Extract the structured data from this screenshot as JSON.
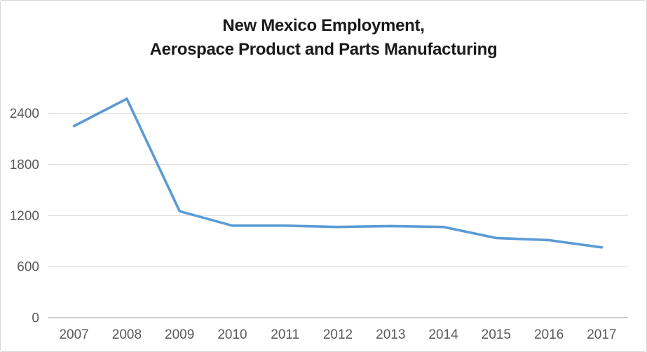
{
  "chart_data": {
    "type": "line",
    "title": "New Mexico Employment, Aerospace Product and Parts Manufacturing",
    "title_line1": "New Mexico Employment,",
    "title_line2": "Aerospace Product and Parts Manufacturing",
    "categories": [
      "2007",
      "2008",
      "2009",
      "2010",
      "2011",
      "2012",
      "2013",
      "2014",
      "2015",
      "2016",
      "2017"
    ],
    "values": [
      2250,
      2570,
      1250,
      1080,
      1080,
      1065,
      1075,
      1065,
      935,
      910,
      825
    ],
    "xlabel": "",
    "ylabel": "",
    "yticks": [
      0,
      600,
      1200,
      1800,
      2400
    ],
    "ylim": [
      0,
      2700
    ],
    "grid": true,
    "legend": "none",
    "colors": {
      "series_line": "#5b9bd5",
      "gridline": "#d9d9d9",
      "axis_line": "#bfbfbf",
      "tick_label": "#595959",
      "title_text": "#1a1a1a",
      "frame_border": "#d8d8d8",
      "background": "#ffffff"
    }
  }
}
